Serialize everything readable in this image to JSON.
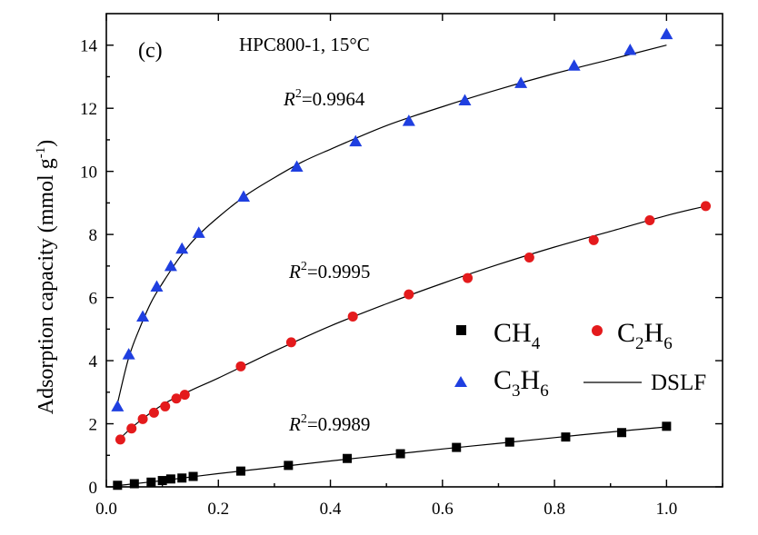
{
  "chart_data": {
    "type": "scatter",
    "panel_label": "(c)",
    "title": "HPC800-1, 15°C",
    "xlabel": "",
    "ylabel": "Adsorption capacity (mmol g-1)",
    "ylabel_main": "Adsorption capacity",
    "ylabel_unit": "mmol g",
    "ylabel_unit_sup": "-1",
    "xlim": [
      0.0,
      1.1
    ],
    "ylim": [
      0,
      15
    ],
    "xticks": [
      "0.0",
      "0.2",
      "0.4",
      "0.6",
      "0.8",
      "1.0"
    ],
    "yticks": [
      "0",
      "2",
      "4",
      "6",
      "8",
      "10",
      "12",
      "14"
    ],
    "legend_position": "lower-right",
    "series": [
      {
        "name": "CH4",
        "name_main": "CH",
        "name_sub": "4",
        "marker": "square",
        "color": "#000000",
        "x": [
          0.02,
          0.05,
          0.08,
          0.1,
          0.115,
          0.135,
          0.155,
          0.24,
          0.325,
          0.43,
          0.525,
          0.625,
          0.72,
          0.82,
          0.92,
          1.0
        ],
        "y": [
          0.05,
          0.1,
          0.15,
          0.2,
          0.25,
          0.28,
          0.33,
          0.5,
          0.68,
          0.9,
          1.05,
          1.25,
          1.42,
          1.58,
          1.72,
          1.92
        ]
      },
      {
        "name": "C2H6",
        "name_main": "C",
        "name_sub": "2",
        "name_main2": "H",
        "name_sub2": "6",
        "marker": "circle",
        "color": "#e41a1c",
        "x": [
          0.025,
          0.045,
          0.065,
          0.085,
          0.105,
          0.125,
          0.14,
          0.24,
          0.33,
          0.44,
          0.54,
          0.645,
          0.755,
          0.87,
          0.97,
          1.07
        ],
        "y": [
          1.5,
          1.85,
          2.15,
          2.35,
          2.55,
          2.8,
          2.92,
          3.82,
          4.58,
          5.4,
          6.1,
          6.62,
          7.27,
          7.82,
          8.45,
          8.9
        ]
      },
      {
        "name": "C3H6",
        "name_main": "C",
        "name_sub": "3",
        "name_main2": "H",
        "name_sub2": "6",
        "marker": "triangle",
        "color": "#1f3fe0",
        "x": [
          0.02,
          0.04,
          0.065,
          0.09,
          0.115,
          0.135,
          0.165,
          0.245,
          0.34,
          0.445,
          0.54,
          0.64,
          0.74,
          0.835,
          0.935,
          1.0
        ],
        "y": [
          2.55,
          4.2,
          5.4,
          6.35,
          7.0,
          7.55,
          8.05,
          9.2,
          10.15,
          10.95,
          11.6,
          12.25,
          12.8,
          13.35,
          13.85,
          14.35
        ]
      }
    ],
    "fit": {
      "name": "DSLF",
      "lines": [
        {
          "x": [
            0.02,
            0.1,
            0.2,
            0.3,
            0.4,
            0.5,
            0.6,
            0.7,
            0.8,
            0.9,
            1.0
          ],
          "y": [
            0.04,
            0.2,
            0.42,
            0.62,
            0.82,
            1.01,
            1.2,
            1.38,
            1.56,
            1.74,
            1.9
          ]
        },
        {
          "x": [
            0.02,
            0.05,
            0.1,
            0.15,
            0.2,
            0.3,
            0.4,
            0.5,
            0.6,
            0.7,
            0.8,
            0.9,
            1.0,
            1.07
          ],
          "y": [
            1.45,
            1.95,
            2.6,
            3.05,
            3.45,
            4.3,
            5.1,
            5.8,
            6.45,
            7.05,
            7.6,
            8.1,
            8.6,
            8.9
          ]
        },
        {
          "x": [
            0.02,
            0.04,
            0.06,
            0.08,
            0.1,
            0.13,
            0.16,
            0.2,
            0.25,
            0.3,
            0.35,
            0.4,
            0.5,
            0.6,
            0.7,
            0.8,
            0.9,
            1.0
          ],
          "y": [
            2.65,
            4.1,
            5.05,
            5.85,
            6.45,
            7.25,
            7.9,
            8.55,
            9.25,
            9.8,
            10.3,
            10.7,
            11.45,
            12.05,
            12.6,
            13.1,
            13.55,
            14.0
          ]
        }
      ]
    },
    "annotations": [
      {
        "label": "R",
        "sup": "2",
        "value": "=0.9964"
      },
      {
        "label": "R",
        "sup": "2",
        "value": "=0.9995"
      },
      {
        "label": "R",
        "sup": "2",
        "value": "=0.9989"
      }
    ]
  }
}
